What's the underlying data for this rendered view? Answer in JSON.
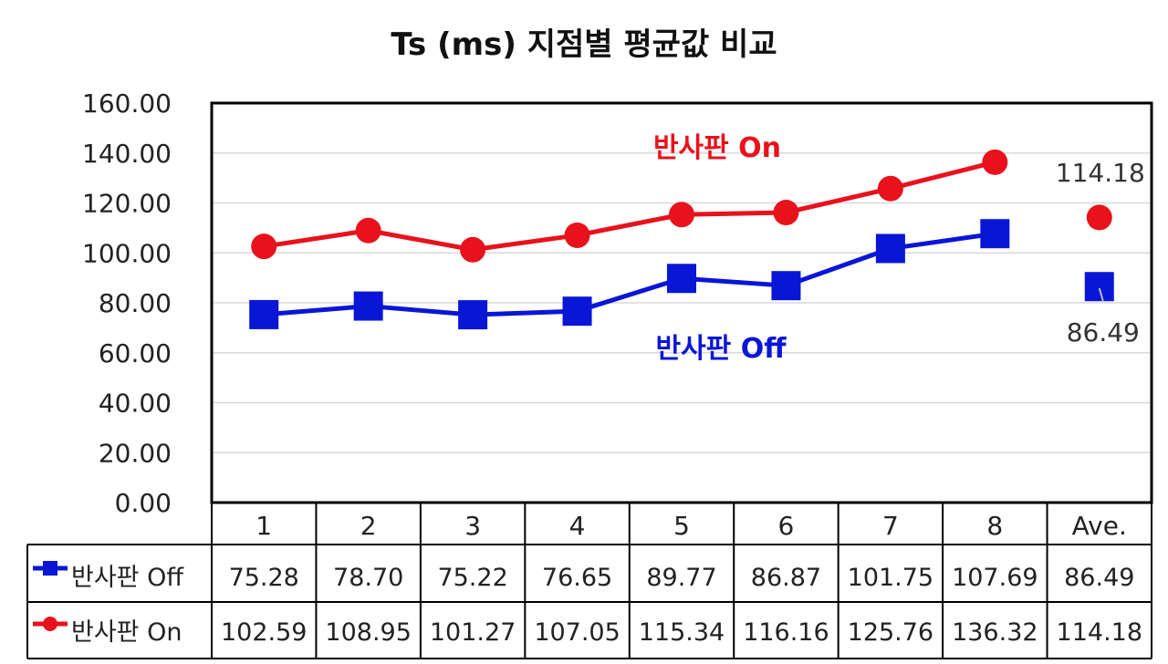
{
  "chart_data": {
    "type": "line",
    "title": "Ts (ms) 지점별 평균값 비교",
    "categories": [
      "1",
      "2",
      "3",
      "4",
      "5",
      "6",
      "7",
      "8",
      "Ave."
    ],
    "ylim": [
      0,
      160
    ],
    "yticks": [
      "0.00",
      "20.00",
      "40.00",
      "60.00",
      "80.00",
      "100.00",
      "120.00",
      "140.00",
      "160.00"
    ],
    "grid": true,
    "legend": "data-table",
    "series": [
      {
        "name": "반사판 Off",
        "label": "반사판 Off",
        "color": "#0a16d6",
        "marker": "square",
        "values": [
          75.28,
          78.7,
          75.22,
          76.65,
          89.77,
          86.87,
          101.75,
          107.69,
          86.49
        ],
        "display": [
          "75.28",
          "78.70",
          "75.22",
          "76.65",
          "89.77",
          "86.87",
          "101.75",
          "107.69",
          "86.49"
        ],
        "point_label": "86.49"
      },
      {
        "name": "반사판 On",
        "label": "반사판 On",
        "color": "#e8121c",
        "marker": "circle",
        "values": [
          102.59,
          108.95,
          101.27,
          107.05,
          115.34,
          116.16,
          125.76,
          136.32,
          114.18
        ],
        "display": [
          "102.59",
          "108.95",
          "101.27",
          "107.05",
          "115.34",
          "116.16",
          "125.76",
          "136.32",
          "114.18"
        ],
        "point_label": "114.18"
      }
    ]
  }
}
